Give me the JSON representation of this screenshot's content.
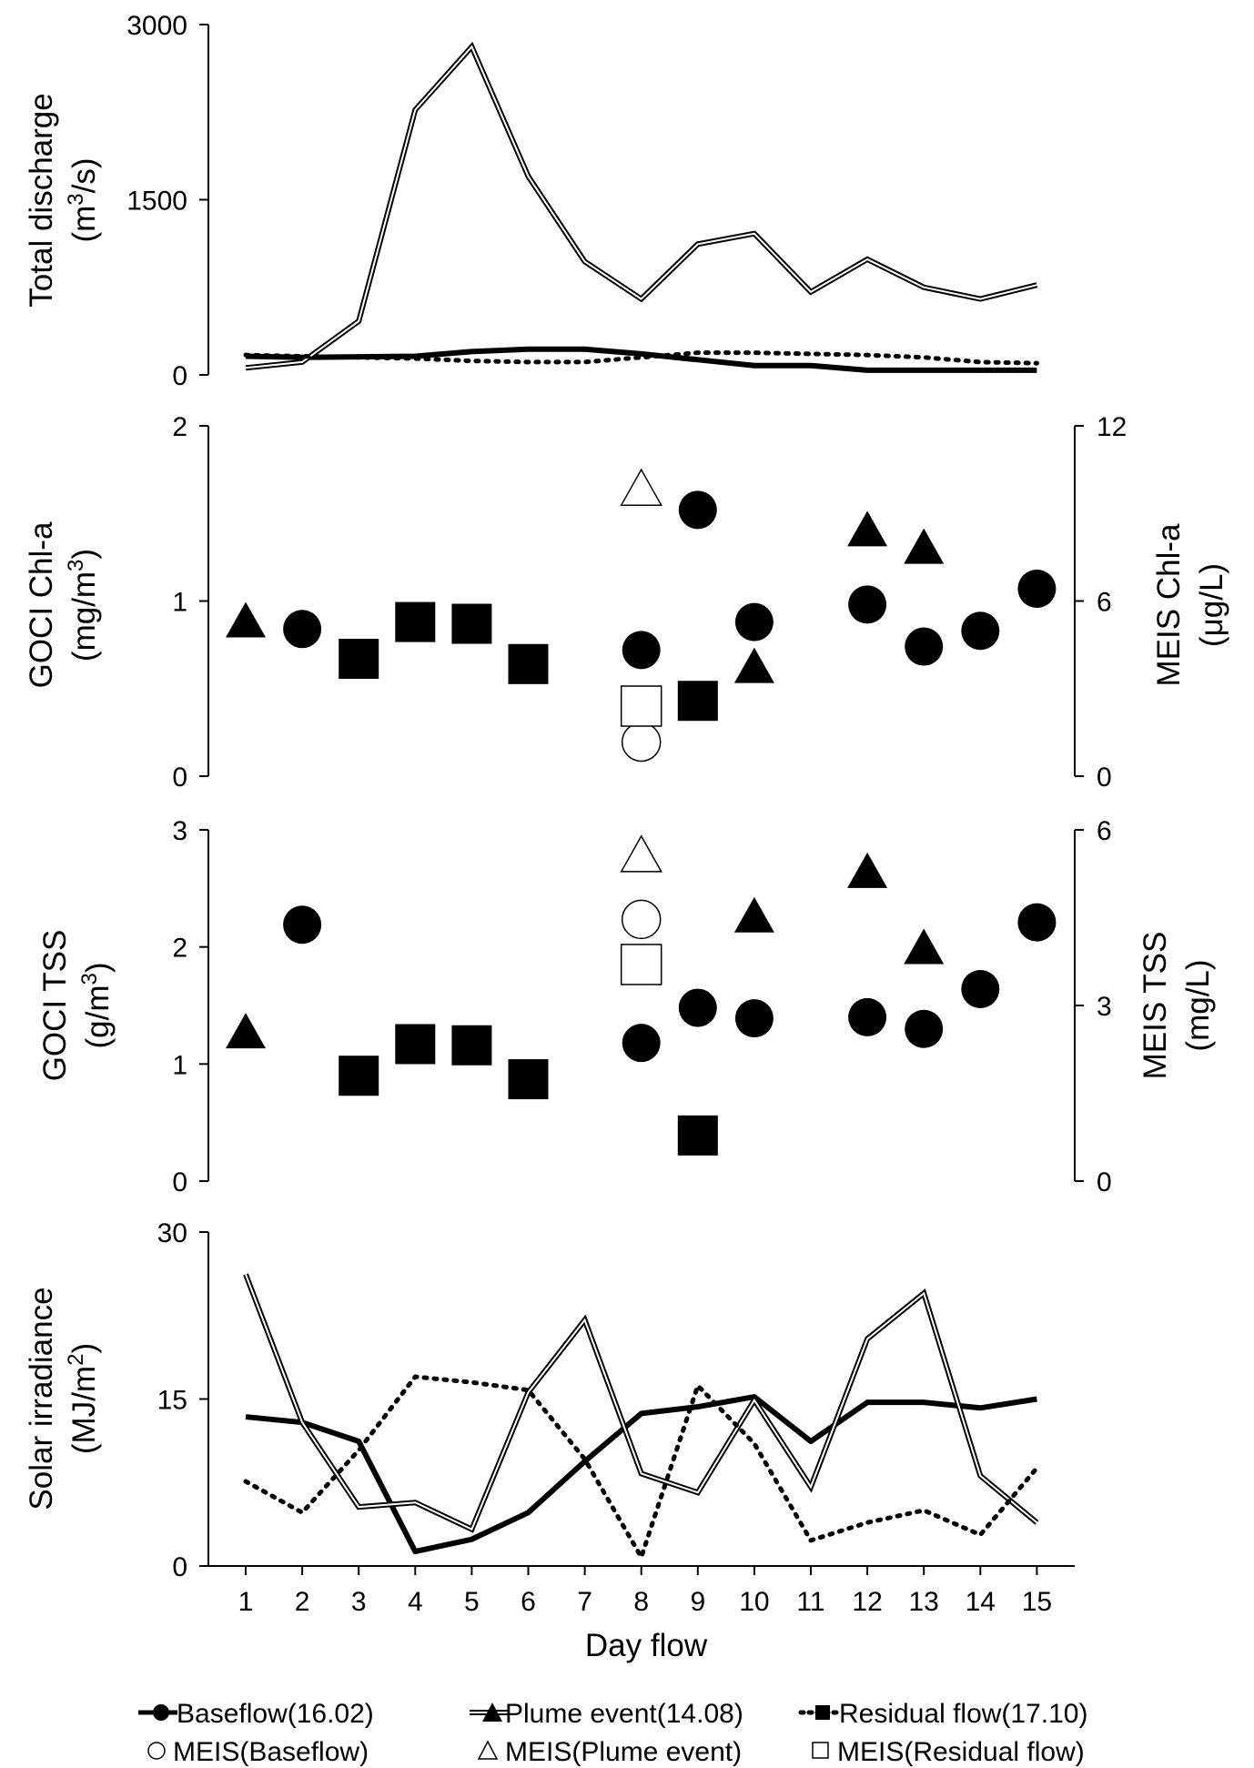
{
  "chart_data": [
    {
      "type": "line",
      "panel": "discharge",
      "ylabel": "Total discharge",
      "yunit_base": "(m",
      "yunit_sup": "3",
      "yunit_end": "/s)",
      "ylim": [
        0,
        3000
      ],
      "yticks": [
        "0",
        "1500",
        "3000"
      ],
      "x": [
        1,
        2,
        3,
        4,
        5,
        6,
        7,
        8,
        9,
        10,
        11,
        12,
        13,
        14,
        15
      ],
      "series": [
        {
          "name": "Baseflow(16.02)",
          "values": [
            160,
            150,
            155,
            160,
            200,
            220,
            220,
            180,
            130,
            80,
            80,
            40,
            40,
            40,
            40
          ]
        },
        {
          "name": "Plume event(14.08)",
          "values": [
            60,
            110,
            460,
            2270,
            2810,
            1700,
            970,
            650,
            1120,
            1210,
            710,
            990,
            750,
            650,
            770
          ]
        },
        {
          "name": "Residual flow(17.10)",
          "values": [
            170,
            160,
            150,
            140,
            120,
            110,
            110,
            150,
            190,
            190,
            180,
            170,
            150,
            110,
            100
          ]
        }
      ]
    },
    {
      "type": "scatter",
      "panel": "chla",
      "ylabel": "GOCI Chl-a",
      "yunit_base": "(mg/m",
      "yunit_sup": "3",
      "yunit_end": ")",
      "ylim": [
        0,
        2
      ],
      "yticks": [
        "0",
        "1",
        "2"
      ],
      "y2label": "MEIS Chl-a",
      "y2unit": "(μg/L)",
      "y2lim": [
        0,
        12
      ],
      "y2ticks": [
        "0",
        "6",
        "12"
      ],
      "series": [
        {
          "name": "Baseflow(16.02)",
          "x": [
            2,
            8,
            9,
            10,
            12,
            13,
            14,
            15
          ],
          "values": [
            0.84,
            0.72,
            1.52,
            0.88,
            0.98,
            0.74,
            0.83,
            1.07
          ]
        },
        {
          "name": "Plume event(14.08)",
          "x": [
            1,
            10,
            12,
            13
          ],
          "values": [
            0.87,
            0.61,
            1.39,
            1.29
          ]
        },
        {
          "name": "Residual flow(17.10)",
          "x": [
            3,
            4,
            5,
            6,
            9
          ],
          "values": [
            0.67,
            0.88,
            0.87,
            0.64,
            0.43
          ]
        },
        {
          "name": "MEIS(Baseflow)",
          "x": [
            8
          ],
          "values": [
            1.17
          ]
        },
        {
          "name": "MEIS(Plume event)",
          "x": [
            8
          ],
          "values": [
            9.75
          ]
        },
        {
          "name": "MEIS(Residual flow)",
          "x": [
            8
          ],
          "values": [
            2.4
          ]
        }
      ]
    },
    {
      "type": "scatter",
      "panel": "tss",
      "ylabel": "GOCI TSS",
      "yunit_base": "(g/m",
      "yunit_sup": "3",
      "yunit_end": ")",
      "ylim": [
        0,
        3
      ],
      "yticks": [
        "0",
        "1",
        "2",
        "3"
      ],
      "y2label": "MEIS TSS",
      "y2unit": "(mg/L)",
      "y2lim": [
        0,
        6
      ],
      "y2ticks": [
        "0",
        "3",
        "6"
      ],
      "series": [
        {
          "name": "Baseflow(16.02)",
          "x": [
            2,
            8,
            9,
            10,
            12,
            13,
            14,
            15
          ],
          "values": [
            2.19,
            1.18,
            1.48,
            1.39,
            1.4,
            1.3,
            1.64,
            2.21
          ]
        },
        {
          "name": "Plume event(14.08)",
          "x": [
            1,
            10,
            12,
            13
          ],
          "values": [
            1.25,
            2.24,
            2.62,
            1.97
          ]
        },
        {
          "name": "Residual flow(17.10)",
          "x": [
            3,
            4,
            5,
            6,
            9
          ],
          "values": [
            0.9,
            1.17,
            1.16,
            0.87,
            0.39
          ]
        },
        {
          "name": "MEIS(Baseflow)",
          "x": [
            8
          ],
          "values": [
            4.47
          ]
        },
        {
          "name": "MEIS(Plume event)",
          "x": [
            8
          ],
          "values": [
            5.52
          ]
        },
        {
          "name": "MEIS(Residual flow)",
          "x": [
            8
          ],
          "values": [
            3.7
          ]
        }
      ]
    },
    {
      "type": "line",
      "panel": "solar",
      "ylabel": "Solar irradiance",
      "yunit_base": "(MJ/m",
      "yunit_sup": "2",
      "yunit_end": ")",
      "ylim": [
        0,
        30
      ],
      "yticks": [
        "0",
        "15",
        "30"
      ],
      "xlabel": "Day flow",
      "x": [
        1,
        2,
        3,
        4,
        5,
        6,
        7,
        8,
        9,
        10,
        11,
        12,
        13,
        14,
        15
      ],
      "xticks": [
        "1",
        "2",
        "3",
        "4",
        "5",
        "6",
        "7",
        "8",
        "9",
        "10",
        "11",
        "12",
        "13",
        "14",
        "15"
      ],
      "series": [
        {
          "name": "Baseflow(16.02)",
          "values": [
            13.4,
            12.9,
            11.2,
            1.3,
            2.4,
            4.8,
            9.4,
            13.7,
            14.3,
            15.2,
            11.2,
            14.7,
            14.7,
            14.2,
            15.0
          ]
        },
        {
          "name": "Plume event(14.08)",
          "values": [
            26.2,
            12.9,
            5.3,
            5.7,
            3.3,
            15.6,
            22.1,
            8.3,
            6.6,
            14.9,
            7.1,
            20.4,
            24.5,
            8.1,
            3.9
          ]
        },
        {
          "name": "Residual flow(17.10)",
          "values": [
            7.6,
            4.8,
            10.4,
            17.0,
            16.5,
            15.8,
            9.6,
            0.8,
            16.2,
            11.0,
            2.3,
            3.9,
            5.0,
            2.8,
            8.8
          ]
        }
      ]
    }
  ],
  "legend": {
    "row1": [
      "Baseflow(16.02)",
      "Plume event(14.08)",
      "Residual flow(17.10)"
    ],
    "row2": [
      "MEIS(Baseflow)",
      "MEIS(Plume event)",
      "MEIS(Residual flow)"
    ]
  },
  "colors": {
    "ink": "#000000",
    "paper": "#ffffff"
  }
}
